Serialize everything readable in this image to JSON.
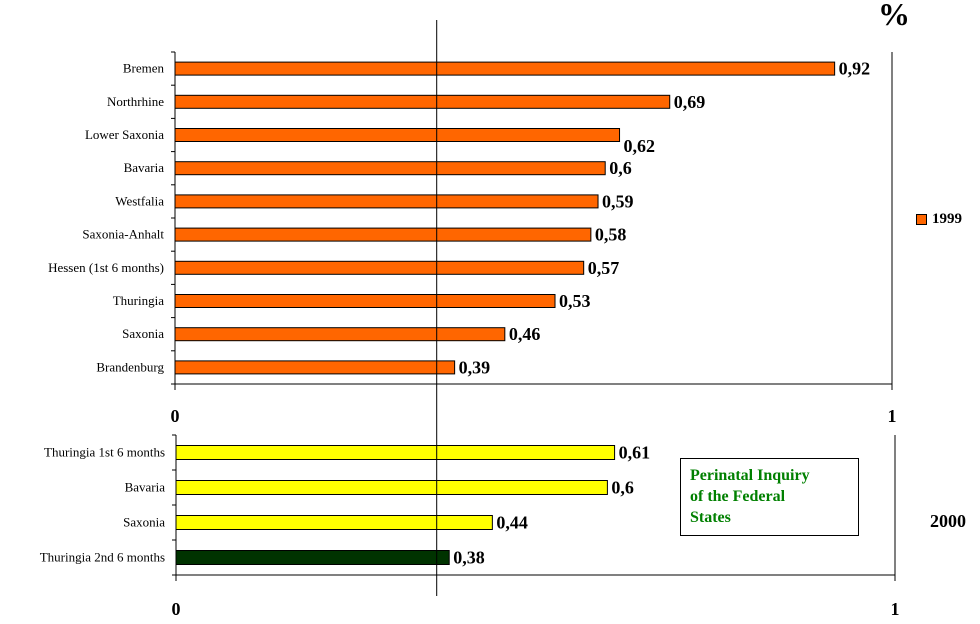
{
  "unit_label": "%",
  "info_box": {
    "lines": [
      "Perinatal Inquiry",
      "of the Federal",
      "States"
    ],
    "color": "#008000"
  },
  "chart_data": [
    {
      "type": "bar",
      "orientation": "horizontal",
      "categories": [
        "Bremen",
        "Northrhine",
        "Lower Saxonia",
        "Bavaria",
        "Westfalia",
        "Saxonia-Anhalt",
        "Hessen (1st 6 months)",
        "Thuringia",
        "Saxonia",
        "Brandenburg"
      ],
      "series": [
        {
          "name": "1999",
          "values": [
            0.92,
            0.69,
            0.62,
            0.6,
            0.59,
            0.58,
            0.57,
            0.53,
            0.46,
            0.39
          ],
          "color": "#FF6600"
        }
      ],
      "data_labels": [
        "0,92",
        "0,69",
        "0,62",
        "0,6",
        "0,59",
        "0,58",
        "0,57",
        "0,53",
        "0,46",
        "0,39"
      ],
      "xlim": [
        0,
        1
      ],
      "x_tick_labels": [
        "0",
        "1"
      ],
      "reference_line": 0.365,
      "legend": {
        "entries": [
          "1999"
        ],
        "placement": "right"
      }
    },
    {
      "type": "bar",
      "orientation": "horizontal",
      "categories": [
        "Thuringia 1st 6 months",
        "Bavaria",
        "Saxonia",
        "Thuringia 2nd 6 months"
      ],
      "values": [
        0.61,
        0.6,
        0.44,
        0.38
      ],
      "colors": [
        "#FFFF00",
        "#FFFF00",
        "#FFFF00",
        "#003300"
      ],
      "data_labels": [
        "0,61",
        "0,6",
        "0,44",
        "0,38"
      ],
      "xlim": [
        0,
        1
      ],
      "x_tick_labels": [
        "0",
        "1"
      ],
      "reference_line": 0.365,
      "side_label": "2000"
    }
  ]
}
